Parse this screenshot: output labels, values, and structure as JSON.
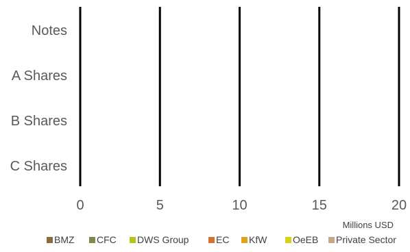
{
  "chart_data": {
    "type": "bar",
    "orientation": "horizontal",
    "stacked": true,
    "categories": [
      "Notes",
      "A Shares",
      "B Shares",
      "C Shares"
    ],
    "series": [
      {
        "name": "BMZ",
        "color": "#8B6A3E",
        "values": [
          0,
          0,
          0,
          0
        ]
      },
      {
        "name": "CFC",
        "color": "#7F8A4A",
        "values": [
          0,
          0,
          0,
          0
        ]
      },
      {
        "name": "DWS Group",
        "color": "#B5C416",
        "values": [
          0,
          0,
          0,
          0
        ]
      },
      {
        "name": "EC",
        "color": "#D9712E",
        "values": [
          0,
          0,
          0,
          0
        ]
      },
      {
        "name": "KfW",
        "color": "#E0A21A",
        "values": [
          0,
          0,
          0,
          0
        ]
      },
      {
        "name": "OeEB",
        "color": "#D4D414",
        "values": [
          0,
          0,
          0,
          0
        ]
      },
      {
        "name": "Private Sector",
        "color": "#C4A888",
        "values": [
          0,
          0,
          0,
          0
        ]
      }
    ],
    "x_ticks": [
      0,
      5,
      10,
      15,
      20
    ],
    "xlim": [
      0,
      20
    ],
    "x_unit": "Millions USD",
    "grid": "vertical",
    "legend_position": "bottom"
  }
}
